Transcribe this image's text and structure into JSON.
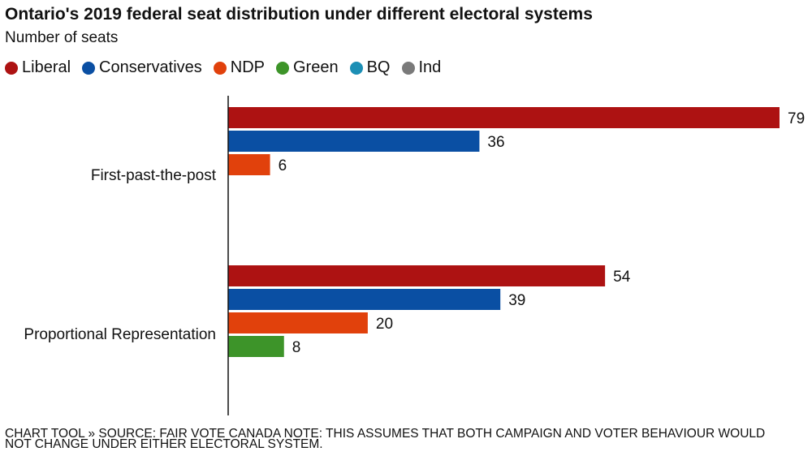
{
  "chart_data": {
    "type": "bar",
    "orientation": "horizontal",
    "title": "Ontario's 2019 federal seat distribution under different electoral systems",
    "subtitle": "Number of seats",
    "categories": [
      "First-past-the-post",
      "Proportional Representation"
    ],
    "legend": [
      {
        "name": "Liberal",
        "color": "#ad1212"
      },
      {
        "name": "Conservatives",
        "color": "#0a4fa3"
      },
      {
        "name": "NDP",
        "color": "#e1410c"
      },
      {
        "name": "Green",
        "color": "#3d9429"
      },
      {
        "name": "BQ",
        "color": "#1c8fb5"
      },
      {
        "name": "Ind",
        "color": "#7a7a7a"
      }
    ],
    "series": [
      {
        "name": "Liberal",
        "values": [
          79,
          54
        ]
      },
      {
        "name": "Conservatives",
        "values": [
          36,
          39
        ]
      },
      {
        "name": "NDP",
        "values": [
          6,
          20
        ]
      },
      {
        "name": "Green",
        "values": [
          null,
          8
        ]
      }
    ],
    "xlim": [
      0,
      79
    ],
    "grid": false,
    "legend_position": "top-left"
  },
  "note": "CHART TOOL » SOURCE: FAIR VOTE CANADA NOTE: THIS ASSUMES THAT BOTH CAMPAIGN AND VOTER BEHAVIOUR WOULD NOT CHANGE UNDER EITHER ELECTORAL SYSTEM."
}
